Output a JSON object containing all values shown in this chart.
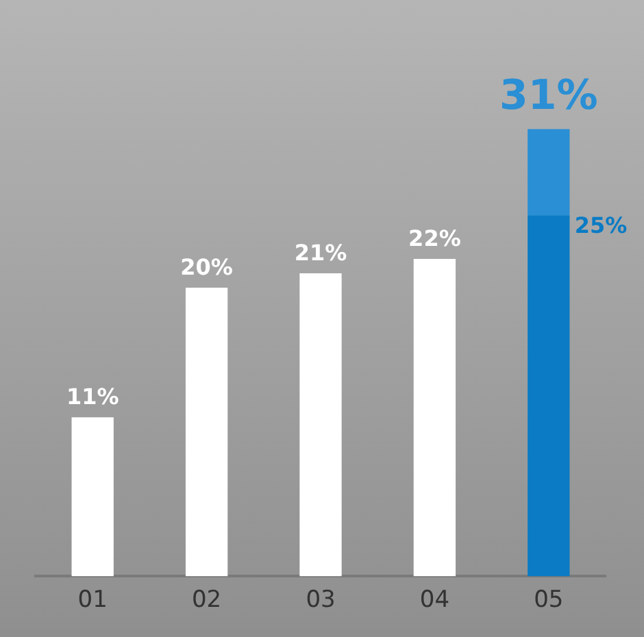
{
  "chart_data": {
    "type": "bar",
    "stacked": true,
    "categories": [
      "01",
      "02",
      "03",
      "04",
      "05"
    ],
    "series": [
      {
        "colors": [
          "#ffffff",
          "#ffffff",
          "#ffffff",
          "#ffffff",
          "#0a7bc4"
        ],
        "values": [
          11,
          20,
          21,
          22,
          25
        ],
        "value_labels": [
          "11%",
          "20%",
          "21%",
          "22%",
          null
        ]
      },
      {
        "color": "#2a8fd4",
        "values": [
          null,
          null,
          null,
          null,
          6
        ]
      }
    ],
    "totals": [
      null,
      null,
      null,
      null,
      "31%"
    ],
    "annotations": [
      {
        "text": "25%",
        "x": "05",
        "y": 25
      }
    ],
    "ylim": [
      0,
      40
    ],
    "tick_labels": "x",
    "grid": false,
    "legend": false
  }
}
